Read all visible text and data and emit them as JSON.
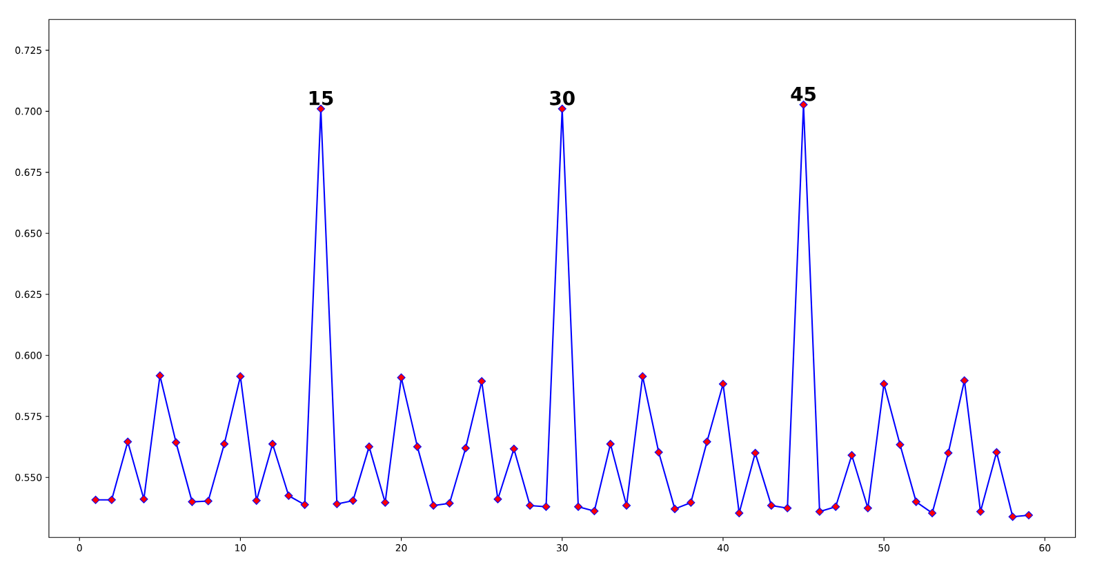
{
  "chart_data": {
    "type": "line",
    "marker": "diamond",
    "line_style": "solid",
    "x": [
      1,
      2,
      3,
      4,
      5,
      6,
      7,
      8,
      9,
      10,
      11,
      12,
      13,
      14,
      15,
      16,
      17,
      18,
      19,
      20,
      21,
      22,
      23,
      24,
      25,
      26,
      27,
      28,
      29,
      30,
      31,
      32,
      33,
      34,
      35,
      36,
      37,
      38,
      39,
      40,
      41,
      42,
      43,
      44,
      45,
      46,
      47,
      48,
      49,
      50,
      51,
      52,
      53,
      54,
      55,
      56,
      57,
      58,
      59
    ],
    "series": [
      {
        "color": "#0000ff",
        "colors": [
          "#ff0000",
          "#ff0000",
          "#ff0000",
          "#ff0000",
          "#ff0000",
          "#ff0000",
          "#ff0000",
          "#ff0000",
          "#ff0000",
          "#ff0000",
          "#ff0000",
          "#ff0000",
          "#ff0000",
          "#ff0000",
          "#ff0000",
          "#ff0000",
          "#ff0000",
          "#ff0000",
          "#ff0000",
          "#ff0000",
          "#ff0000",
          "#ff0000",
          "#ff0000",
          "#ff0000",
          "#ff0000",
          "#ff0000",
          "#ff0000",
          "#ff0000",
          "#ff0000",
          "#ff0000",
          "#ff0000",
          "#ff0000",
          "#ff0000",
          "#ff0000",
          "#ff0000",
          "#ff0000",
          "#ff0000",
          "#ff0000",
          "#ff0000",
          "#ff0000",
          "#ff0000",
          "#ff0000",
          "#ff0000",
          "#ff0000",
          "#ff0000",
          "#ff0000",
          "#ff0000",
          "#ff0000",
          "#ff0000",
          "#ff0000",
          "#ff0000",
          "#ff0000",
          "#ff0000",
          "#ff0000",
          "#ff0000",
          "#ff0000",
          "#ff0000",
          "#ff0000",
          "#ff0000"
        ],
        "values": [
          0.5408,
          0.5408,
          0.5646,
          0.5411,
          0.5917,
          0.5643,
          0.54,
          0.5403,
          0.5637,
          0.5914,
          0.5405,
          0.5637,
          0.5425,
          0.5388,
          0.701,
          0.5391,
          0.5405,
          0.5626,
          0.5397,
          0.5909,
          0.5626,
          0.5385,
          0.5394,
          0.562,
          0.5894,
          0.5411,
          0.5617,
          0.5385,
          0.538,
          0.701,
          0.538,
          0.5362,
          0.5637,
          0.5385,
          0.5914,
          0.5603,
          0.5371,
          0.5397,
          0.5646,
          0.5883,
          0.5354,
          0.56,
          0.5385,
          0.5374,
          0.7027,
          0.536,
          0.538,
          0.5591,
          0.5374,
          0.5883,
          0.5634,
          0.54,
          0.5354,
          0.56,
          0.5897,
          0.536,
          0.5603,
          0.5339,
          0.5345
        ]
      }
    ],
    "xlim": [
      -1.9,
      61.9
    ],
    "ylim": [
      0.5254,
      0.7376
    ],
    "xticks": [
      0,
      10,
      20,
      30,
      40,
      50,
      60
    ],
    "yticks": [
      {
        "value": 0.55,
        "label": "0.550"
      },
      {
        "value": 0.575,
        "label": "0.575"
      },
      {
        "value": 0.6,
        "label": "0.600"
      },
      {
        "value": 0.625,
        "label": "0.625"
      },
      {
        "value": 0.65,
        "label": "0.650"
      },
      {
        "value": 0.675,
        "label": "0.675"
      },
      {
        "value": 0.7,
        "label": "0.700"
      },
      {
        "value": 0.725,
        "label": "0.725"
      }
    ],
    "annotations": [
      {
        "text": "15",
        "x": 15,
        "y": 0.701
      },
      {
        "text": "30",
        "x": 30,
        "y": 0.701
      },
      {
        "text": "45",
        "x": 45,
        "y": 0.7027
      }
    ]
  }
}
